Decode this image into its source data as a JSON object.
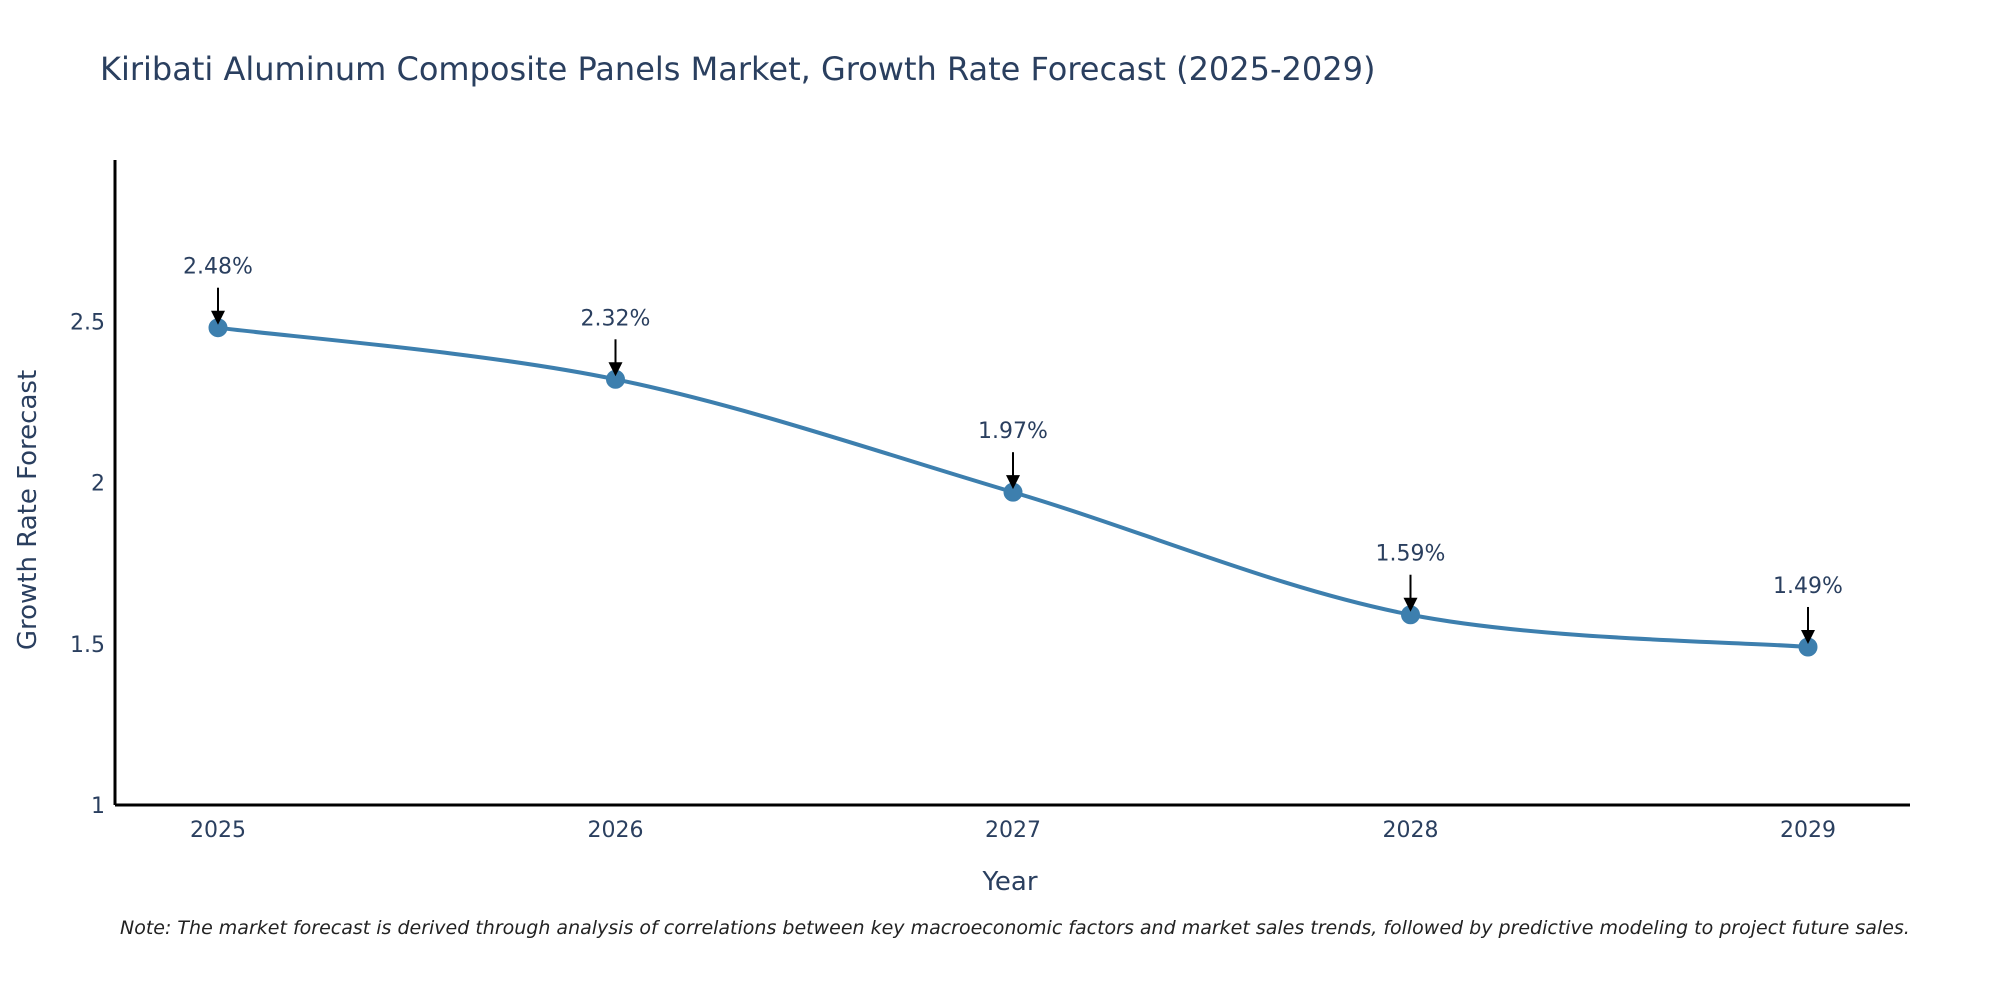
{
  "colors": {
    "line": "#3d7fae",
    "marker": "#3d7fae",
    "axis": "#000000",
    "arrow": "#000000",
    "text": "#2a3f5f"
  },
  "chart_data": {
    "type": "line",
    "title": "Kiribati Aluminum Composite Panels Market, Growth Rate Forecast (2025-2029)",
    "xlabel": "Year",
    "ylabel": "Growth Rate Forecast",
    "categories": [
      "2025",
      "2026",
      "2027",
      "2028",
      "2029"
    ],
    "values": [
      2.48,
      2.32,
      1.97,
      1.59,
      1.49
    ],
    "data_labels": [
      "2.48%",
      "2.32%",
      "1.97%",
      "1.59%",
      "1.49%"
    ],
    "ylim": [
      1,
      3
    ],
    "yticks": [
      1,
      1.5,
      2,
      2.5
    ],
    "ytick_labels": [
      "1",
      "1.5",
      "2",
      "2.5"
    ],
    "grid": false,
    "legend": "none",
    "line_shape": "spline"
  },
  "note": "Note: The market forecast is derived through analysis of correlations between key macroeconomic factors and market sales trends, followed by predictive modeling to project future sales."
}
